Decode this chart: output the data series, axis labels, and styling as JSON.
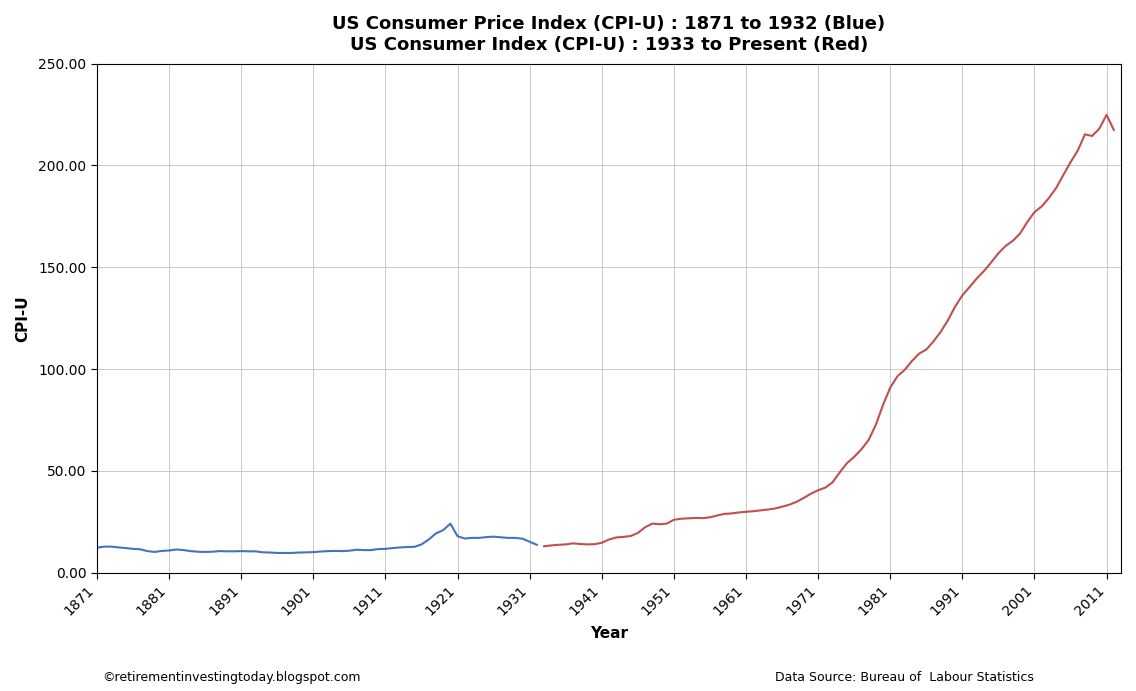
{
  "title_line1": "US Consumer Price Index (CPI-U) : 1871 to 1932 (Blue)",
  "title_line2": "US Consumer Index (CPI-U) : 1933 to Present (Red)",
  "xlabel": "Year",
  "ylabel": "CPI-U",
  "xlim": [
    1871,
    2013
  ],
  "ylim": [
    0,
    250
  ],
  "yticks": [
    0,
    50,
    100,
    150,
    200,
    250
  ],
  "ytick_labels": [
    "0.00",
    "50.00",
    "100.00",
    "150.00",
    "200.00",
    "250.00"
  ],
  "xticks": [
    1871,
    1881,
    1891,
    1901,
    1911,
    1921,
    1931,
    1941,
    1951,
    1961,
    1971,
    1981,
    1991,
    2001,
    2011
  ],
  "footnote_left": "©retirementinvestingtoday.blogspot.com",
  "footnote_right": "Data Source: Bureau of  Labour Statistics",
  "blue_color": "#4472C4",
  "red_color": "#C0504D",
  "background_color": "#ffffff",
  "blue_data": {
    "years": [
      1871,
      1872,
      1873,
      1874,
      1875,
      1876,
      1877,
      1878,
      1879,
      1880,
      1881,
      1882,
      1883,
      1884,
      1885,
      1886,
      1887,
      1888,
      1889,
      1890,
      1891,
      1892,
      1893,
      1894,
      1895,
      1896,
      1897,
      1898,
      1899,
      1900,
      1901,
      1902,
      1903,
      1904,
      1905,
      1906,
      1907,
      1908,
      1909,
      1910,
      1911,
      1912,
      1913,
      1914,
      1915,
      1916,
      1917,
      1918,
      1919,
      1920,
      1921,
      1922,
      1923,
      1924,
      1925,
      1926,
      1927,
      1928,
      1929,
      1930,
      1931,
      1932
    ],
    "values": [
      12.3,
      12.8,
      12.8,
      12.4,
      12.1,
      11.7,
      11.5,
      10.6,
      10.2,
      10.7,
      10.9,
      11.4,
      11.1,
      10.6,
      10.3,
      10.2,
      10.3,
      10.6,
      10.5,
      10.5,
      10.6,
      10.5,
      10.5,
      10.0,
      9.9,
      9.7,
      9.7,
      9.7,
      9.9,
      10.0,
      10.1,
      10.4,
      10.6,
      10.7,
      10.6,
      10.8,
      11.3,
      11.1,
      11.1,
      11.6,
      11.7,
      12.1,
      12.4,
      12.6,
      12.7,
      13.9,
      16.3,
      19.3,
      20.9,
      24.1,
      17.9,
      16.8,
      17.1,
      17.1,
      17.5,
      17.7,
      17.4,
      17.1,
      17.1,
      16.7,
      15.2,
      13.7
    ]
  },
  "red_data": {
    "years": [
      1933,
      1934,
      1935,
      1936,
      1937,
      1938,
      1939,
      1940,
      1941,
      1942,
      1943,
      1944,
      1945,
      1946,
      1947,
      1948,
      1949,
      1950,
      1951,
      1952,
      1953,
      1954,
      1955,
      1956,
      1957,
      1958,
      1959,
      1960,
      1961,
      1962,
      1963,
      1964,
      1965,
      1966,
      1967,
      1968,
      1969,
      1970,
      1971,
      1972,
      1973,
      1974,
      1975,
      1976,
      1977,
      1978,
      1979,
      1980,
      1981,
      1982,
      1983,
      1984,
      1985,
      1986,
      1987,
      1988,
      1989,
      1990,
      1991,
      1992,
      1993,
      1994,
      1995,
      1996,
      1997,
      1998,
      1999,
      2000,
      2001,
      2002,
      2003,
      2004,
      2005,
      2006,
      2007,
      2008,
      2009,
      2010,
      2011,
      2012
    ],
    "values": [
      13.0,
      13.4,
      13.7,
      13.9,
      14.4,
      14.1,
      13.9,
      14.0,
      14.7,
      16.3,
      17.3,
      17.6,
      18.0,
      19.5,
      22.3,
      24.1,
      23.8,
      24.1,
      26.0,
      26.5,
      26.7,
      26.9,
      26.8,
      27.2,
      28.1,
      28.9,
      29.1,
      29.6,
      29.9,
      30.2,
      30.6,
      31.0,
      31.5,
      32.4,
      33.4,
      34.8,
      36.7,
      38.8,
      40.5,
      41.8,
      44.4,
      49.3,
      53.8,
      56.9,
      60.6,
      65.2,
      72.6,
      82.4,
      90.9,
      96.5,
      99.6,
      103.9,
      107.6,
      109.6,
      113.6,
      118.3,
      124.0,
      130.7,
      136.2,
      140.3,
      144.5,
      148.2,
      152.4,
      156.9,
      160.5,
      163.0,
      166.6,
      172.2,
      177.1,
      179.9,
      184.0,
      188.9,
      195.3,
      201.6,
      207.3,
      215.3,
      214.5,
      218.1,
      224.9,
      217.5
    ]
  }
}
